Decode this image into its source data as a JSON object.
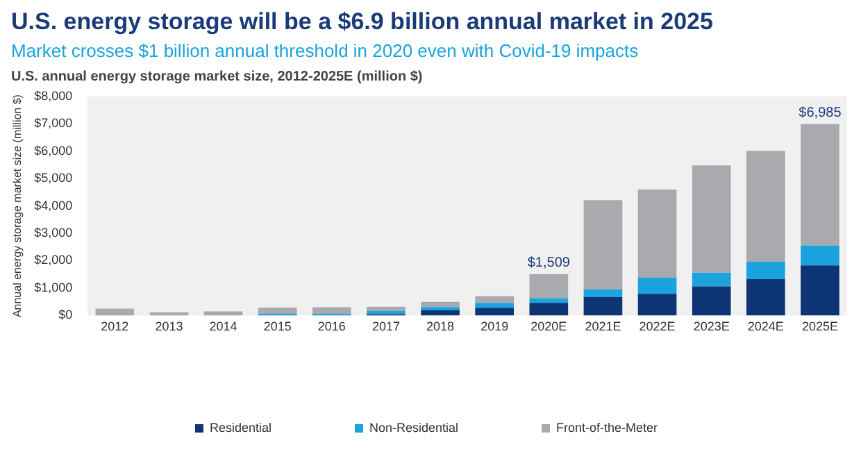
{
  "chart_data": {
    "type": "bar",
    "stacked": true,
    "title": "U.S. energy storage will be a $6.9 billion annual market in 2025",
    "subtitle": "Market crosses $1 billion annual threshold in 2020 even with Covid-19 impacts",
    "annotations": [
      "U.S. annual energy storage market size, 2012-2025E (million $)"
    ],
    "ylabel": "Annual energy storage market size (million $)",
    "categories": [
      "2012",
      "2013",
      "2014",
      "2015",
      "2016",
      "2017",
      "2018",
      "2019",
      "2020E",
      "2021E",
      "2022E",
      "2023E",
      "2024E",
      "2025E"
    ],
    "series": [
      {
        "name": "Residential",
        "color": "#0d3475",
        "values": [
          0,
          0,
          0,
          null,
          null,
          50,
          190,
          280,
          460,
          670,
          790,
          1060,
          1330,
          1830
        ]
      },
      {
        "name": "Non-Residential",
        "color": "#1aa3dd",
        "values": [
          null,
          null,
          null,
          60,
          60,
          110,
          120,
          180,
          170,
          280,
          590,
          500,
          630,
          730
        ]
      },
      {
        "name": "Front-of-the-Meter",
        "color": "#a9aaae",
        "values": [
          250,
          120,
          150,
          230,
          240,
          160,
          190,
          250,
          879,
          3260,
          3220,
          3920,
          4050,
          4425
        ]
      }
    ],
    "totals": [
      null,
      null,
      null,
      null,
      null,
      null,
      null,
      null,
      "$1,509",
      null,
      null,
      null,
      null,
      "$6,985"
    ],
    "ylim": [
      0,
      8000
    ],
    "yticks": [
      {
        "value": 0,
        "label": "$0"
      },
      {
        "value": 1000,
        "label": "$1,000"
      },
      {
        "value": 2000,
        "label": "$2,000"
      },
      {
        "value": 3000,
        "label": "$3,000"
      },
      {
        "value": 4000,
        "label": "$4,000"
      },
      {
        "value": 5000,
        "label": "$5,000"
      },
      {
        "value": 6000,
        "label": "$6,000"
      },
      {
        "value": 7000,
        "label": "$7,000"
      },
      {
        "value": 8000,
        "label": "$8,000"
      }
    ],
    "grid": false,
    "legend": "bottom",
    "marker": "square"
  }
}
